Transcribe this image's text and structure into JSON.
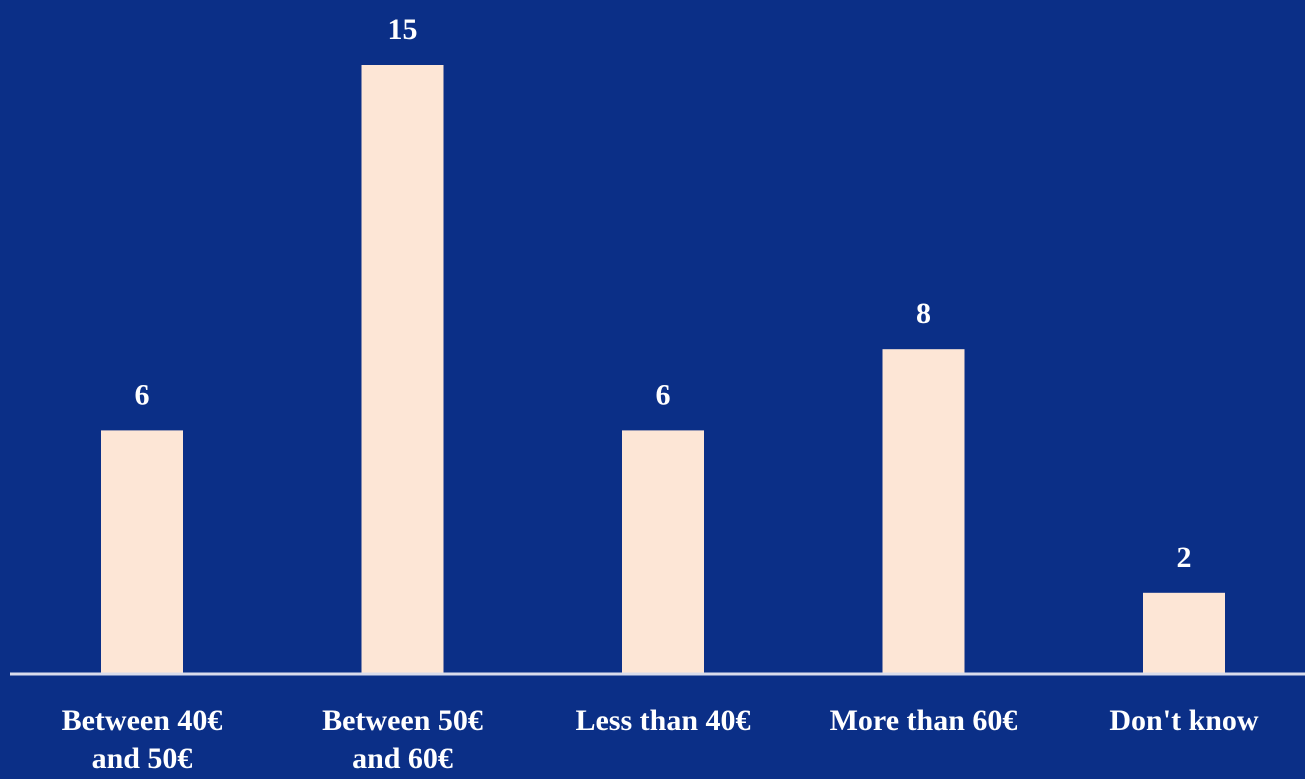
{
  "colors": {
    "background": "#0b2f87",
    "bar": "#fde6d6",
    "text": "#ffffff",
    "axis": "#d9dcec"
  },
  "chart_data": {
    "type": "bar",
    "categories": [
      [
        "Between 40€",
        "and 50€"
      ],
      [
        "Between 50€",
        "and 60€"
      ],
      [
        "Less than 40€"
      ],
      [
        "More than 60€"
      ],
      [
        "Don't know"
      ]
    ],
    "values": [
      6,
      15,
      6,
      8,
      2
    ],
    "data_labels": [
      "6",
      "15",
      "6",
      "8",
      "2"
    ],
    "title": "",
    "xlabel": "",
    "ylabel": "",
    "ylim": [
      0,
      15
    ],
    "grid": false,
    "legend": "none"
  }
}
